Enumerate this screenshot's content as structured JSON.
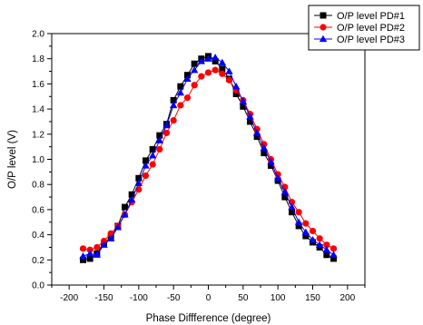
{
  "chart_data": {
    "type": "line",
    "xlabel": "Phase Diffference (degree)",
    "ylabel": "O/P level    (V)",
    "xlim": [
      -225,
      225
    ],
    "ylim": [
      0,
      2.0
    ],
    "x_ticks": [
      -200,
      -150,
      -100,
      -50,
      0,
      50,
      100,
      150,
      200
    ],
    "x_tick_labels": [
      "-200",
      "-150",
      "-100",
      "-50",
      "0",
      "50",
      "100",
      "150",
      "200"
    ],
    "y_ticks": [
      0,
      0.2,
      0.4,
      0.6,
      0.8,
      1.0,
      1.2,
      1.4,
      1.6,
      1.8,
      2.0
    ],
    "y_tick_labels": [
      "0.0",
      "0.2",
      "0.4",
      "0.6",
      "0.8",
      "1.0",
      "1.2",
      "1.4",
      "1.6",
      "1.8",
      "2.0"
    ],
    "grid": false,
    "legend_position": "top-right",
    "x": [
      -180,
      -170,
      -160,
      -150,
      -140,
      -130,
      -120,
      -110,
      -100,
      -90,
      -80,
      -70,
      -60,
      -50,
      -40,
      -30,
      -20,
      -10,
      0,
      10,
      20,
      30,
      40,
      50,
      60,
      70,
      80,
      90,
      100,
      110,
      120,
      130,
      140,
      150,
      160,
      170,
      180
    ],
    "series": [
      {
        "name": "O/P level PD#1",
        "color": "#000000",
        "marker": "square",
        "values": [
          0.2,
          0.21,
          0.25,
          0.33,
          0.38,
          0.47,
          0.62,
          0.72,
          0.85,
          0.99,
          1.08,
          1.19,
          1.28,
          1.47,
          1.58,
          1.67,
          1.76,
          1.8,
          1.82,
          1.78,
          1.72,
          1.64,
          1.52,
          1.42,
          1.3,
          1.18,
          1.05,
          0.95,
          0.83,
          0.7,
          0.58,
          0.47,
          0.39,
          0.34,
          0.3,
          0.24,
          0.21
        ]
      },
      {
        "name": "O/P level PD#2",
        "color": "#ff0000",
        "marker": "circle",
        "values": [
          0.29,
          0.28,
          0.3,
          0.35,
          0.41,
          0.47,
          0.56,
          0.66,
          0.76,
          0.87,
          0.96,
          1.08,
          1.21,
          1.31,
          1.43,
          1.49,
          1.59,
          1.66,
          1.69,
          1.71,
          1.68,
          1.63,
          1.55,
          1.47,
          1.36,
          1.24,
          1.12,
          1.0,
          0.88,
          0.78,
          0.66,
          0.58,
          0.49,
          0.43,
          0.37,
          0.32,
          0.29
        ]
      },
      {
        "name": "O/P level PD#3",
        "color": "#0000ff",
        "marker": "triangle",
        "values": [
          0.23,
          0.25,
          0.24,
          0.32,
          0.37,
          0.46,
          0.56,
          0.68,
          0.81,
          0.95,
          1.03,
          1.15,
          1.27,
          1.43,
          1.53,
          1.64,
          1.71,
          1.78,
          1.8,
          1.81,
          1.77,
          1.7,
          1.58,
          1.46,
          1.34,
          1.21,
          1.09,
          0.98,
          0.85,
          0.74,
          0.62,
          0.5,
          0.42,
          0.36,
          0.32,
          0.28,
          0.24
        ]
      }
    ]
  }
}
